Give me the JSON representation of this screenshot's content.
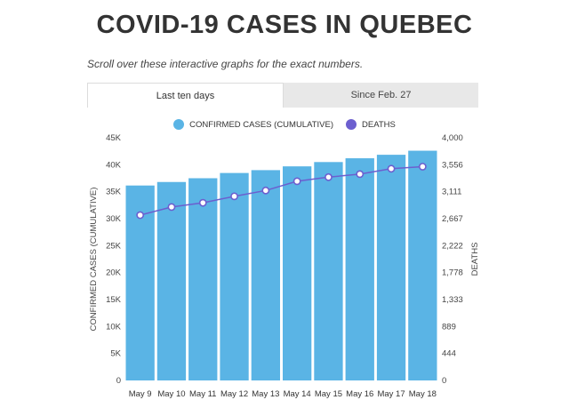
{
  "page": {
    "title": "COVID-19 CASES IN QUEBEC",
    "subtitle": "Scroll over these interactive graphs for the exact numbers."
  },
  "tabs": [
    {
      "label": "Last ten days",
      "active": true
    },
    {
      "label": "Since Feb. 27",
      "active": false
    }
  ],
  "colors": {
    "bar": "#5ab4e5",
    "line": "#6c5fcf",
    "marker_fill": "#ffffff"
  },
  "chart_data": {
    "type": "bar",
    "categories": [
      "May 9",
      "May 10",
      "May 11",
      "May 12",
      "May 13",
      "May 14",
      "May 15",
      "May 16",
      "May 17",
      "May 18"
    ],
    "series": [
      {
        "name": "CONFIRMED CASES (CUMULATIVE)",
        "type": "bar",
        "axis": "left",
        "values": [
          36150,
          36800,
          37500,
          38470,
          39000,
          39700,
          40500,
          41200,
          41850,
          42600
        ]
      },
      {
        "name": "DEATHS",
        "type": "line",
        "axis": "right",
        "values": [
          2725,
          2859,
          2928,
          3035,
          3131,
          3284,
          3351,
          3401,
          3490,
          3524
        ]
      }
    ],
    "ylabel": "CONFIRMED CASES (CUMULATIVE)",
    "y2label": "DEATHS",
    "ylim": [
      0,
      45000
    ],
    "y2lim": [
      0,
      4000
    ],
    "yticks": [
      "0",
      "5K",
      "10K",
      "15K",
      "20K",
      "25K",
      "30K",
      "35K",
      "40K",
      "45K"
    ],
    "y2ticks": [
      "0",
      "444",
      "889",
      "1,333",
      "1,778",
      "2,222",
      "2,667",
      "3,111",
      "3,556",
      "4,000"
    ],
    "legend_position": "top-center",
    "grid": false
  }
}
